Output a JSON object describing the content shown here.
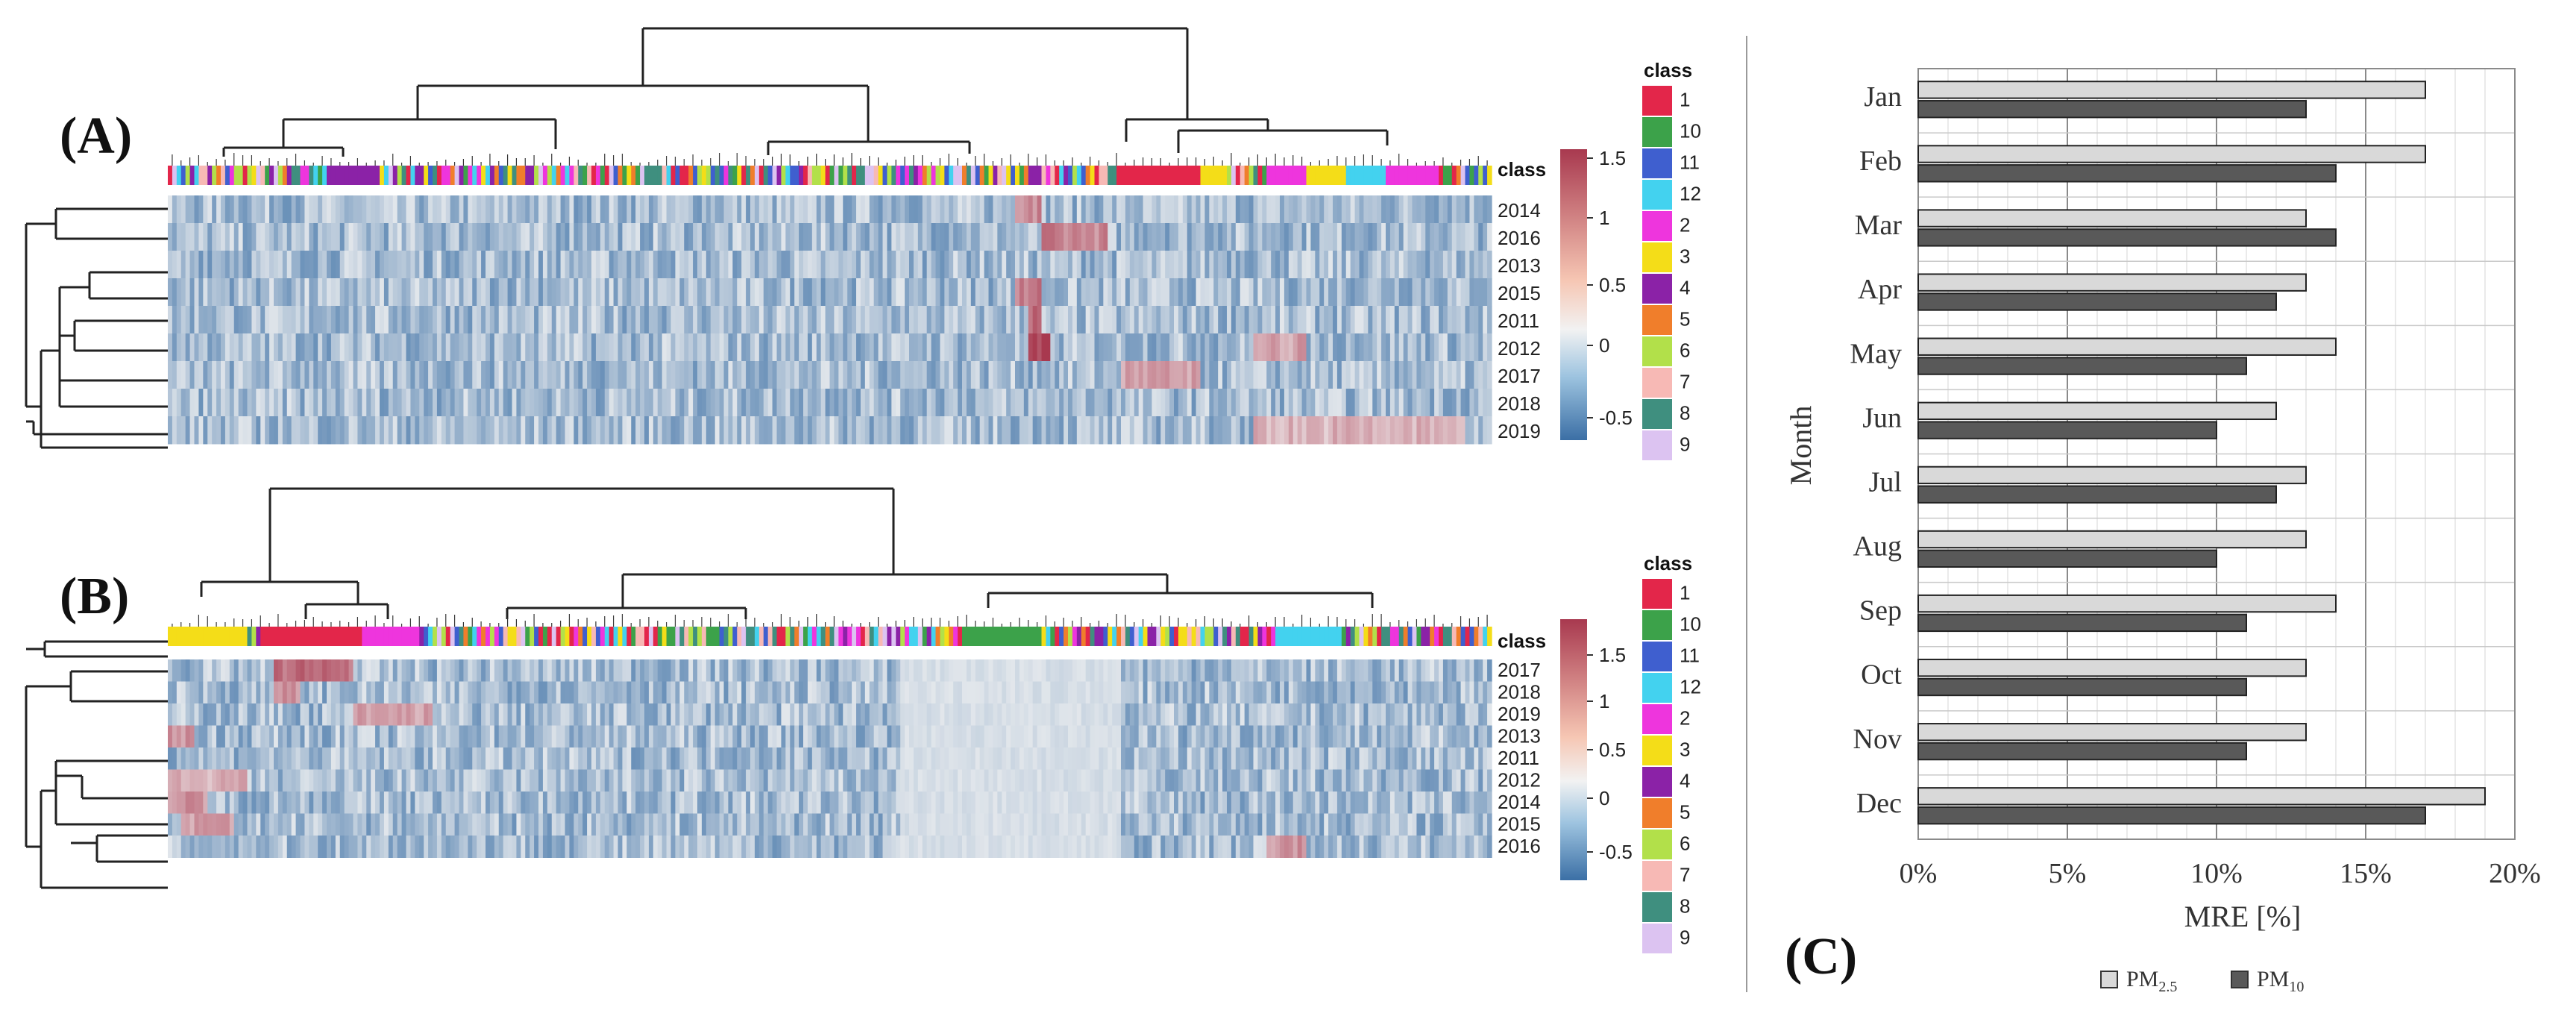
{
  "panel_labels": {
    "a": "(A)",
    "b": "(B)",
    "c": "(C)"
  },
  "colors": {
    "heat_low": "#3b6fa5",
    "heat_mid": "#f2f2f2",
    "heat_high": "#a8394f",
    "pm25_fill": "#d9d9d9",
    "pm10_fill": "#595959"
  },
  "class_palette": [
    {
      "name": "1",
      "color": "#e3264a"
    },
    {
      "name": "10",
      "color": "#3ca24a"
    },
    {
      "name": "11",
      "color": "#3f5fcf"
    },
    {
      "name": "12",
      "color": "#43d2ef"
    },
    {
      "name": "2",
      "color": "#ee35dd"
    },
    {
      "name": "3",
      "color": "#f4dd18"
    },
    {
      "name": "4",
      "color": "#8b22a7"
    },
    {
      "name": "5",
      "color": "#f07e2b"
    },
    {
      "name": "6",
      "color": "#b2e04a"
    },
    {
      "name": "7",
      "color": "#f7b9b5"
    },
    {
      "name": "8",
      "color": "#3f8f7f"
    },
    {
      "name": "9",
      "color": "#dcc3f1"
    }
  ],
  "heatmap_a": {
    "annotation_label": "class",
    "legend_title": "class",
    "rows": [
      "2014",
      "2016",
      "2013",
      "2015",
      "2011",
      "2012",
      "2017",
      "2018",
      "2019"
    ],
    "colorbar_ticks": [
      "1.5",
      "1",
      "0.5",
      "0",
      "-0.5"
    ],
    "colorbar_range": [
      -0.75,
      1.6
    ]
  },
  "heatmap_b": {
    "annotation_label": "class",
    "legend_title": "class",
    "rows": [
      "2017",
      "2018",
      "2019",
      "2013",
      "2011",
      "2012",
      "2014",
      "2015",
      "2016"
    ],
    "colorbar_ticks": [
      "1.5",
      "1",
      "0.5",
      "0",
      "-0.5"
    ],
    "colorbar_range": [
      -0.75,
      1.8
    ]
  },
  "chart_data": {
    "type": "bar",
    "orientation": "horizontal",
    "title": "",
    "xlabel": "MRE [%]",
    "ylabel": "Month",
    "xlim": [
      0,
      20
    ],
    "x_ticks": [
      "0%",
      "5%",
      "10%",
      "15%",
      "20%"
    ],
    "categories": [
      "Jan",
      "Feb",
      "Mar",
      "Apr",
      "May",
      "Jun",
      "Jul",
      "Aug",
      "Sep",
      "Oct",
      "Nov",
      "Dec"
    ],
    "series": [
      {
        "name": "PM2.5",
        "values": [
          17,
          17,
          13,
          13,
          14,
          12,
          13,
          13,
          14,
          13,
          13,
          19
        ]
      },
      {
        "name": "PM10",
        "values": [
          13,
          14,
          14,
          12,
          11,
          10,
          12,
          10,
          11,
          11,
          11,
          17
        ]
      }
    ],
    "legend": [
      {
        "base": "PM",
        "sub": "2.5"
      },
      {
        "base": "PM",
        "sub": "10"
      }
    ],
    "legend_position": "bottom",
    "grid": true
  }
}
